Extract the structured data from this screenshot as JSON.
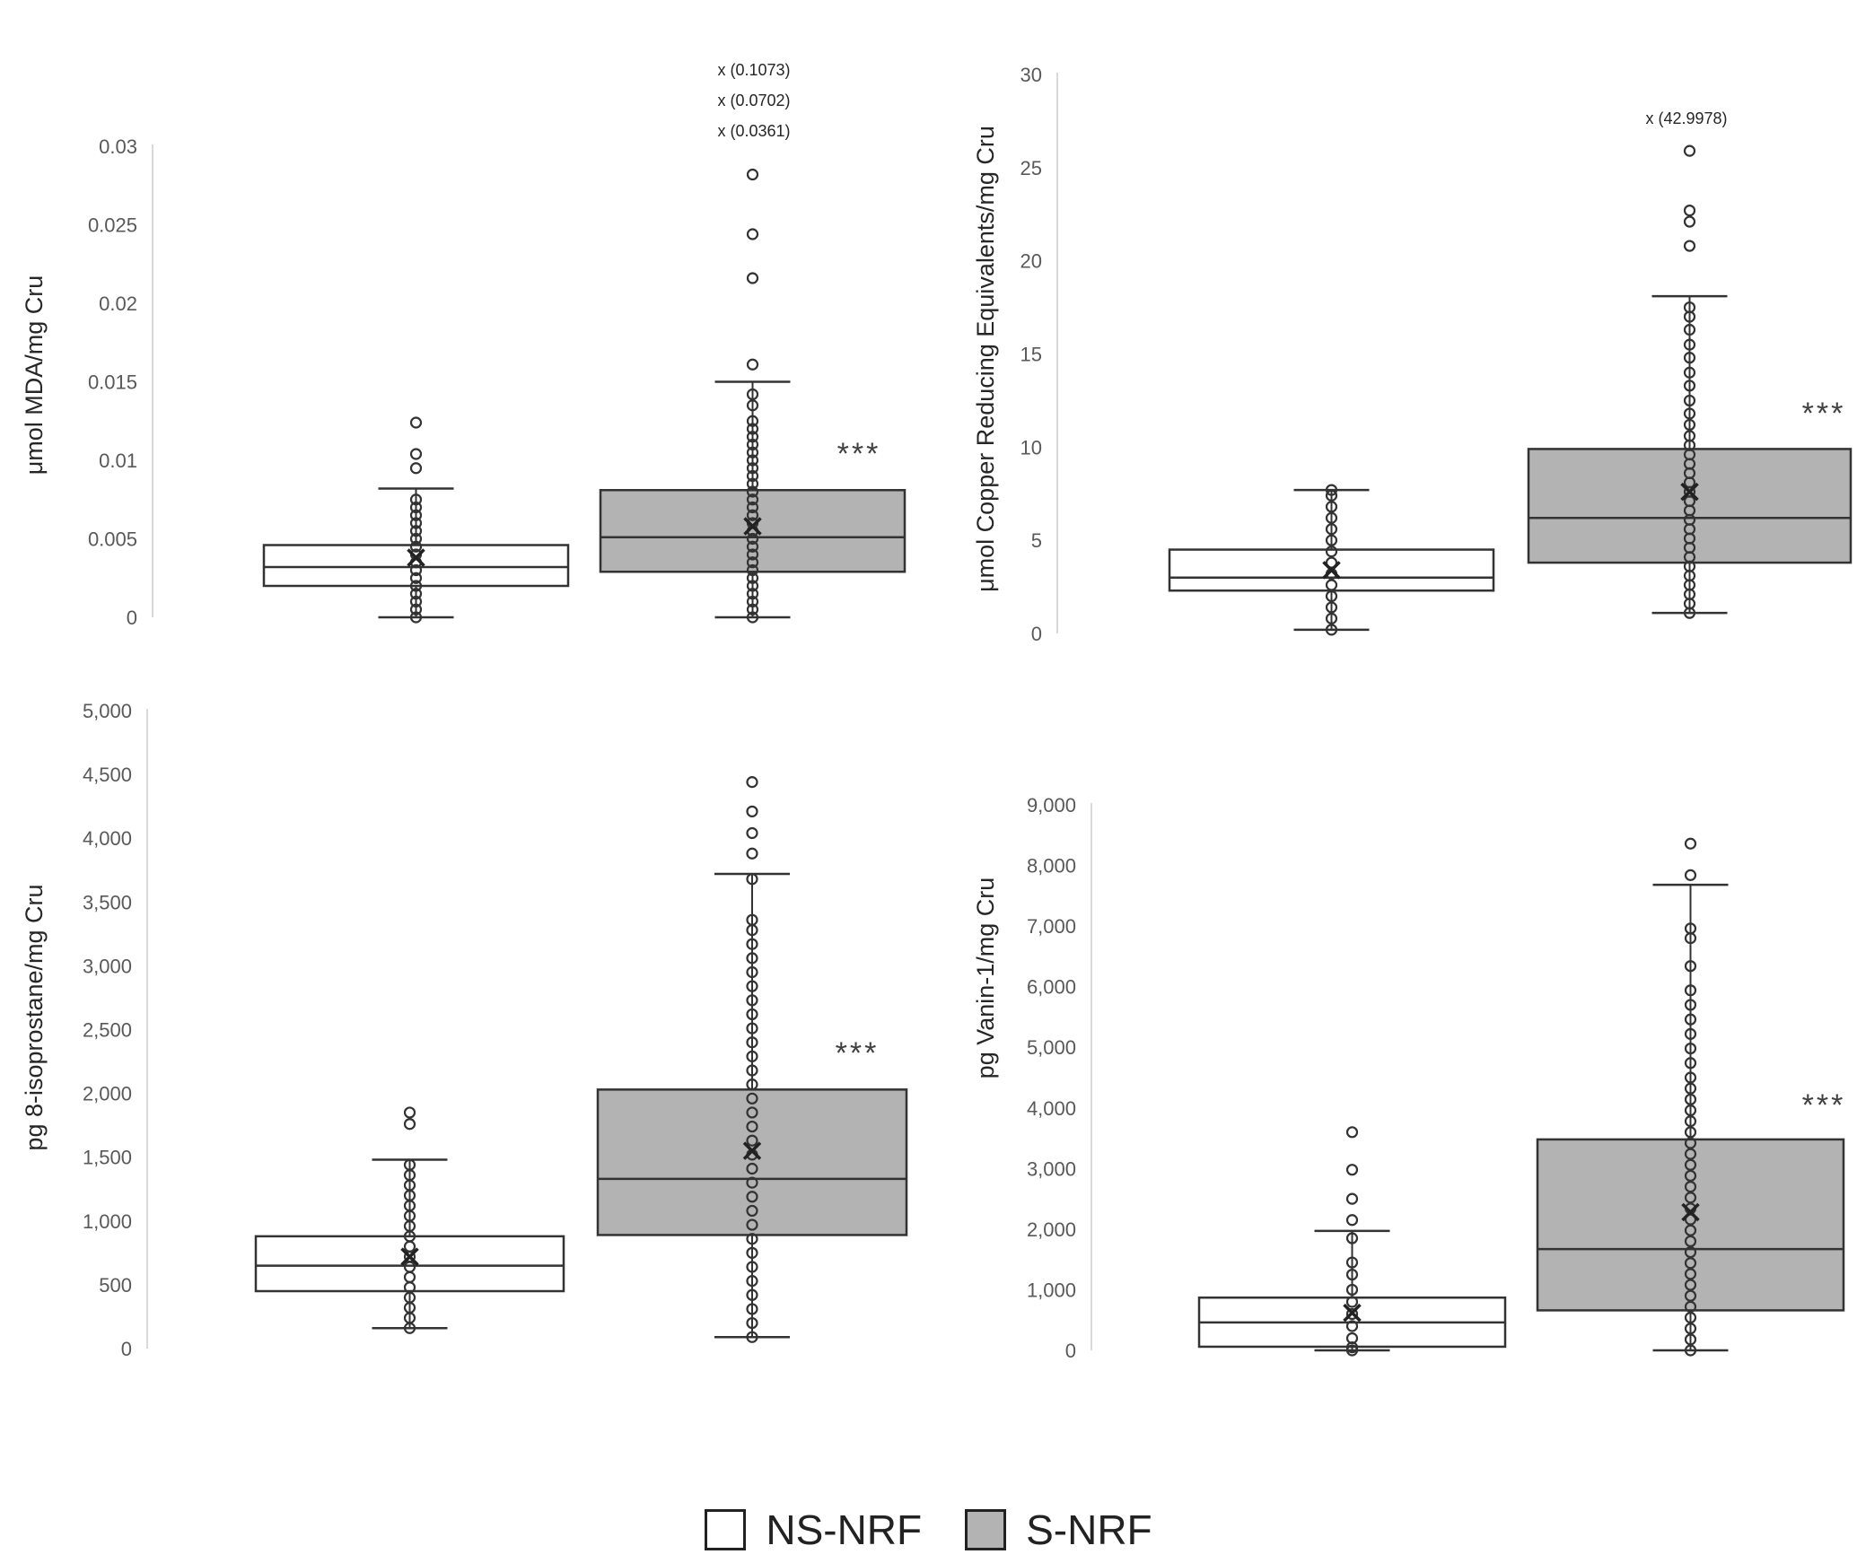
{
  "legend": {
    "items": [
      {
        "label": "NS-NRF",
        "color": "#ffffff"
      },
      {
        "label": "S-NRF",
        "color": "#b3b3b3"
      }
    ]
  },
  "chart_data": [
    {
      "type": "box",
      "ylabel": "μmol MDA/mg Cru",
      "ylim": [
        0,
        0.03
      ],
      "yticks": [
        0,
        0.005,
        0.01,
        0.015,
        0.02,
        0.025,
        0.03
      ],
      "yticklabels": [
        "0",
        "0.005",
        "0.01",
        "0.015",
        "0.02",
        "0.025",
        "0.03"
      ],
      "significance": "***",
      "offscale_labels": [
        "x (0.1073)",
        "x (0.0702)",
        "x (0.0361)"
      ],
      "series": [
        {
          "name": "NS-NRF",
          "min": 0,
          "q1": 0.002,
          "median": 0.0032,
          "q3": 0.0046,
          "max": 0.0082,
          "mean": 0.0038,
          "points": [
            0,
            0.0005,
            0.001,
            0.0015,
            0.002,
            0.0025,
            0.003,
            0.0035,
            0.004,
            0.0045,
            0.005,
            0.0055,
            0.006,
            0.0065,
            0.007,
            0.0075,
            0.0095,
            0.0104,
            0.0124
          ]
        },
        {
          "name": "S-NRF",
          "min": 0,
          "q1": 0.0029,
          "median": 0.0051,
          "q3": 0.0081,
          "max": 0.015,
          "mean": 0.0058,
          "points": [
            0,
            0.0005,
            0.001,
            0.0015,
            0.002,
            0.0025,
            0.003,
            0.0035,
            0.004,
            0.0045,
            0.005,
            0.0055,
            0.006,
            0.0065,
            0.007,
            0.0075,
            0.008,
            0.0085,
            0.009,
            0.0095,
            0.01,
            0.0105,
            0.011,
            0.0115,
            0.012,
            0.0125,
            0.0135,
            0.0142,
            0.0161,
            0.0216,
            0.0244,
            0.0282
          ]
        }
      ]
    },
    {
      "type": "box",
      "ylabel": "μmol Copper Reducing Equivalents/mg Cru",
      "ylim": [
        0,
        30
      ],
      "yticks": [
        0,
        5,
        10,
        15,
        20,
        25,
        30
      ],
      "yticklabels": [
        "0",
        "5",
        "10",
        "15",
        "20",
        "25",
        "30"
      ],
      "significance": "***",
      "offscale_labels": [
        "x (42.9978)"
      ],
      "series": [
        {
          "name": "NS-NRF",
          "min": 0.2,
          "q1": 2.3,
          "median": 3.0,
          "q3": 4.5,
          "max": 7.7,
          "mean": 3.4,
          "points": [
            0.2,
            0.8,
            1.4,
            2.0,
            2.6,
            3.2,
            3.8,
            4.4,
            5.0,
            5.6,
            6.2,
            6.8,
            7.4,
            7.7
          ]
        },
        {
          "name": "S-NRF",
          "min": 1.1,
          "q1": 3.8,
          "median": 6.2,
          "q3": 9.9,
          "max": 18.1,
          "mean": 7.6,
          "points": [
            1.1,
            1.6,
            2.1,
            2.6,
            3.1,
            3.6,
            4.1,
            4.6,
            5.1,
            5.6,
            6.1,
            6.6,
            7.1,
            7.6,
            8.1,
            8.6,
            9.1,
            9.6,
            10.1,
            10.6,
            11.2,
            11.8,
            12.5,
            13.3,
            14.0,
            14.8,
            15.5,
            16.3,
            17.0,
            17.5,
            20.8,
            22.1,
            22.7,
            25.9
          ]
        }
      ]
    },
    {
      "type": "box",
      "ylabel": "pg 8-isoprostane/mg Cru",
      "ylim": [
        0,
        5000
      ],
      "yticks": [
        0,
        500,
        1000,
        1500,
        2000,
        2500,
        3000,
        3500,
        4000,
        4500,
        5000
      ],
      "yticklabels": [
        "0",
        "500",
        "1,000",
        "1,500",
        "2,000",
        "2,500",
        "3,000",
        "3,500",
        "4,000",
        "4,500",
        "5,000"
      ],
      "significance": "***",
      "offscale_labels": [],
      "series": [
        {
          "name": "NS-NRF",
          "min": 160,
          "q1": 450,
          "median": 650,
          "q3": 880,
          "max": 1480,
          "mean": 720,
          "points": [
            160,
            240,
            320,
            400,
            480,
            560,
            640,
            720,
            800,
            880,
            960,
            1040,
            1120,
            1200,
            1280,
            1360,
            1440,
            1760,
            1850
          ]
        },
        {
          "name": "S-NRF",
          "min": 90,
          "q1": 890,
          "median": 1330,
          "q3": 2030,
          "max": 3720,
          "mean": 1550,
          "points": [
            90,
            200,
            310,
            420,
            530,
            640,
            750,
            860,
            970,
            1080,
            1190,
            1300,
            1410,
            1520,
            1630,
            1740,
            1850,
            1960,
            2070,
            2180,
            2290,
            2400,
            2510,
            2620,
            2730,
            2840,
            2950,
            3060,
            3170,
            3280,
            3360,
            3680,
            3880,
            4040,
            4210,
            4440
          ]
        }
      ]
    },
    {
      "type": "box",
      "ylabel": "pg Vanin-1/mg Cru",
      "ylim": [
        0,
        9000
      ],
      "yticks": [
        0,
        1000,
        2000,
        3000,
        4000,
        5000,
        6000,
        7000,
        8000,
        9000
      ],
      "yticklabels": [
        "0",
        "1,000",
        "2,000",
        "3,000",
        "4,000",
        "5,000",
        "6,000",
        "7,000",
        "8,000",
        "9,000"
      ],
      "significance": "***",
      "offscale_labels": [],
      "series": [
        {
          "name": "NS-NRF",
          "min": 0,
          "q1": 60,
          "median": 460,
          "q3": 870,
          "max": 1970,
          "mean": 620,
          "points": [
            0,
            50,
            200,
            400,
            600,
            800,
            1000,
            1250,
            1450,
            1850,
            2150,
            2500,
            2980,
            3600
          ]
        },
        {
          "name": "S-NRF",
          "min": 0,
          "q1": 660,
          "median": 1670,
          "q3": 3480,
          "max": 7680,
          "mean": 2280,
          "points": [
            0,
            180,
            360,
            540,
            720,
            900,
            1080,
            1260,
            1440,
            1620,
            1800,
            1980,
            2160,
            2340,
            2520,
            2700,
            2880,
            3060,
            3240,
            3420,
            3600,
            3780,
            3960,
            4140,
            4320,
            4500,
            4740,
            4980,
            5220,
            5460,
            5700,
            5940,
            6340,
            6800,
            6960,
            7840,
            8360
          ]
        }
      ]
    }
  ]
}
